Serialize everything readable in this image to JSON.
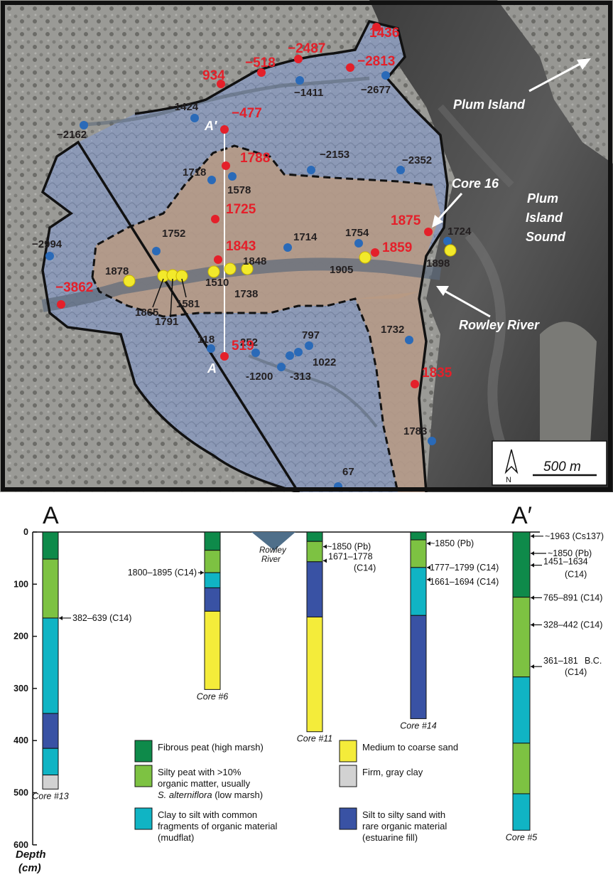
{
  "map": {
    "places": {
      "plum_island": "Plum Island",
      "plum_island_sound_1": "Plum",
      "plum_island_sound_2": "Island",
      "plum_island_sound_3": "Sound",
      "rowley_river": "Rowley River",
      "core16": "Core 16"
    },
    "transect": {
      "start": "A",
      "end": "A′"
    },
    "scale_label": "500 m",
    "north_label": "N",
    "red_points": [
      {
        "label": "1436"
      },
      {
        "label": "−2487"
      },
      {
        "label": "−518"
      },
      {
        "label": "−2813"
      },
      {
        "label": "934"
      },
      {
        "label": "−477"
      },
      {
        "label": "1788"
      },
      {
        "label": "1725"
      },
      {
        "label": "1843"
      },
      {
        "label": "1875"
      },
      {
        "label": "1859"
      },
      {
        "label": "−3862"
      },
      {
        "label": "519"
      },
      {
        "label": "1835"
      }
    ],
    "blue_points": [
      {
        "label": "−1411"
      },
      {
        "label": "−2677"
      },
      {
        "label": "−1424"
      },
      {
        "label": "−2162"
      },
      {
        "label": "−2153"
      },
      {
        "label": "−2352"
      },
      {
        "label": "1718"
      },
      {
        "label": "1578"
      },
      {
        "label": "1752"
      },
      {
        "label": "1714"
      },
      {
        "label": "1754"
      },
      {
        "label": "1724"
      },
      {
        "label": "−2994"
      },
      {
        "label": "1732"
      },
      {
        "label": "118"
      },
      {
        "label": "252"
      },
      {
        "label": "797"
      },
      {
        "label": "1022"
      },
      {
        "label": "-1200"
      },
      {
        "label": "-313"
      },
      {
        "label": "1783"
      },
      {
        "label": "67"
      }
    ],
    "yellow_points": [
      {
        "label": "1878"
      },
      {
        "label": "1865"
      },
      {
        "label": "1791"
      },
      {
        "label": "1581"
      },
      {
        "label": "1510"
      },
      {
        "label": "1738"
      },
      {
        "label": "1848"
      },
      {
        "label": "1905"
      },
      {
        "label": "1898"
      }
    ]
  },
  "section": {
    "left_label": "A",
    "right_label": "A′",
    "axis_title_1": "Depth",
    "axis_title_2": "(cm)",
    "ticks": [
      "0",
      "100",
      "200",
      "300",
      "400",
      "500",
      "600"
    ],
    "river_1": "Rowley",
    "river_2": "River",
    "colors": {
      "fibrous_peat": "#0e8a4a",
      "silty_peat": "#7dc242",
      "clay_silt": "#10b4c4",
      "sand": "#f4ec3a",
      "gray_clay": "#d2d2d2",
      "silt_sand": "#3952a4"
    },
    "cores": [
      {
        "name": "Core #13",
        "layers": [
          {
            "type": "fibrous_peat",
            "top": 0,
            "bottom": 52
          },
          {
            "type": "silty_peat",
            "top": 52,
            "bottom": 165
          },
          {
            "type": "clay_silt",
            "top": 165,
            "bottom": 348
          },
          {
            "type": "silt_sand",
            "top": 348,
            "bottom": 415
          },
          {
            "type": "clay_silt",
            "top": 415,
            "bottom": 466
          },
          {
            "type": "gray_clay",
            "top": 466,
            "bottom": 493
          }
        ]
      },
      {
        "name": "Core #6",
        "layers": [
          {
            "type": "fibrous_peat",
            "top": 0,
            "bottom": 35
          },
          {
            "type": "silty_peat",
            "top": 35,
            "bottom": 78
          },
          {
            "type": "clay_silt",
            "top": 78,
            "bottom": 107
          },
          {
            "type": "silt_sand",
            "top": 107,
            "bottom": 152
          },
          {
            "type": "sand",
            "top": 152,
            "bottom": 302
          }
        ]
      },
      {
        "name": "Core #11",
        "layers": [
          {
            "type": "fibrous_peat",
            "top": 0,
            "bottom": 18
          },
          {
            "type": "silty_peat",
            "top": 18,
            "bottom": 57
          },
          {
            "type": "silt_sand",
            "top": 57,
            "bottom": 163
          },
          {
            "type": "sand",
            "top": 163,
            "bottom": 383
          }
        ]
      },
      {
        "name": "Core #14",
        "layers": [
          {
            "type": "fibrous_peat",
            "top": 0,
            "bottom": 15
          },
          {
            "type": "silty_peat",
            "top": 15,
            "bottom": 68
          },
          {
            "type": "clay_silt",
            "top": 68,
            "bottom": 160
          },
          {
            "type": "silt_sand",
            "top": 160,
            "bottom": 358
          }
        ]
      },
      {
        "name": "Core #5",
        "layers": [
          {
            "type": "fibrous_peat",
            "top": 0,
            "bottom": 125
          },
          {
            "type": "silty_peat",
            "top": 125,
            "bottom": 278
          },
          {
            "type": "clay_silt",
            "top": 278,
            "bottom": 405
          },
          {
            "type": "silty_peat",
            "top": 405,
            "bottom": 502
          },
          {
            "type": "clay_silt",
            "top": 502,
            "bottom": 572
          }
        ]
      }
    ],
    "dates": [
      {
        "text": "382–639 (C14)",
        "depth": 165
      },
      {
        "text": "1800–1895  (C14)",
        "depth": 78
      },
      {
        "text": "~1850 (Pb)",
        "depth": 28
      },
      {
        "text": "1671–1778",
        "depth": 55
      },
      {
        "text": "(C14)",
        "depth": 55
      },
      {
        "text": "~1850 (Pb)",
        "depth": 22
      },
      {
        "text": "1777–1799 (C14)",
        "depth": 68
      },
      {
        "text": "1661–1694 (C14)",
        "depth": 68
      },
      {
        "text": "~1963 (Cs137)",
        "depth": 12
      },
      {
        "text": "~1850 (Pb)",
        "depth": 30
      },
      {
        "text": "1451–1634",
        "depth": 65
      },
      {
        "text": "(C14)",
        "depth": 65
      },
      {
        "text": "765–891 (C14)",
        "depth": 126
      },
      {
        "text": "328–442 (C14)",
        "depth": 178
      },
      {
        "text": "361–181",
        "depth": 258
      },
      {
        "text": "B.C.",
        "depth": 258
      },
      {
        "text": "(C14)",
        "depth": 258
      }
    ],
    "legend": [
      {
        "type": "fibrous_peat",
        "lines": [
          "Fibrous peat (high marsh)"
        ]
      },
      {
        "type": "silty_peat",
        "lines": [
          "Silty peat with >10%",
          "organic matter, usually",
          "S. alterniflora",
          " (low marsh)"
        ]
      },
      {
        "type": "clay_silt",
        "lines": [
          "Clay to silt with common",
          "fragments of organic material",
          "(mudflat)"
        ]
      },
      {
        "type": "sand",
        "lines": [
          "Medium to coarse sand"
        ]
      },
      {
        "type": "gray_clay",
        "lines": [
          "Firm, gray clay"
        ]
      },
      {
        "type": "silt_sand",
        "lines": [
          "Silt to silty sand with",
          "rare organic material",
          "(estuarine fill)"
        ]
      }
    ]
  }
}
